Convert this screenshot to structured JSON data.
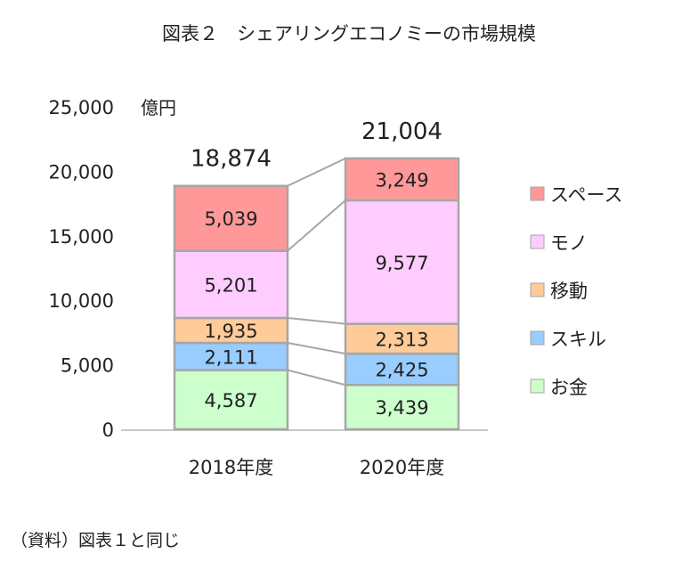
{
  "chart_data": {
    "type": "bar",
    "stacked": true,
    "title": "図表２　シェアリングエコノミーの市場規模",
    "unit": "億円",
    "ylim": [
      0,
      25000
    ],
    "yticks": [
      "0",
      "5,000",
      "10,000",
      "15,000",
      "20,000",
      "25,000"
    ],
    "yticks_values": [
      0,
      5000,
      10000,
      15000,
      20000,
      25000
    ],
    "categories": [
      "2018年度",
      "2020年度"
    ],
    "totals": [
      "18,874",
      "21,004"
    ],
    "series": [
      {
        "name": "お金",
        "color": "#ccffcc",
        "values": [
          4587,
          3439
        ],
        "labels": [
          "4,587",
          "3,439"
        ]
      },
      {
        "name": "スキル",
        "color": "#99ccff",
        "values": [
          2111,
          2425
        ],
        "labels": [
          "2,111",
          "2,425"
        ]
      },
      {
        "name": "移動",
        "color": "#ffcc99",
        "values": [
          1935,
          2313
        ],
        "labels": [
          "1,935",
          "2,313"
        ]
      },
      {
        "name": "モノ",
        "color": "#ffccff",
        "values": [
          5201,
          9577
        ],
        "labels": [
          "5,201",
          "9,577"
        ]
      },
      {
        "name": "スペース",
        "color": "#ff9999",
        "values": [
          5039,
          3249
        ],
        "labels": [
          "5,039",
          "3,249"
        ]
      }
    ],
    "legend_order": [
      "スペース",
      "モノ",
      "移動",
      "スキル",
      "お金"
    ],
    "legend": "right",
    "grid": false
  },
  "source_note": "（資料）図表１と同じ"
}
